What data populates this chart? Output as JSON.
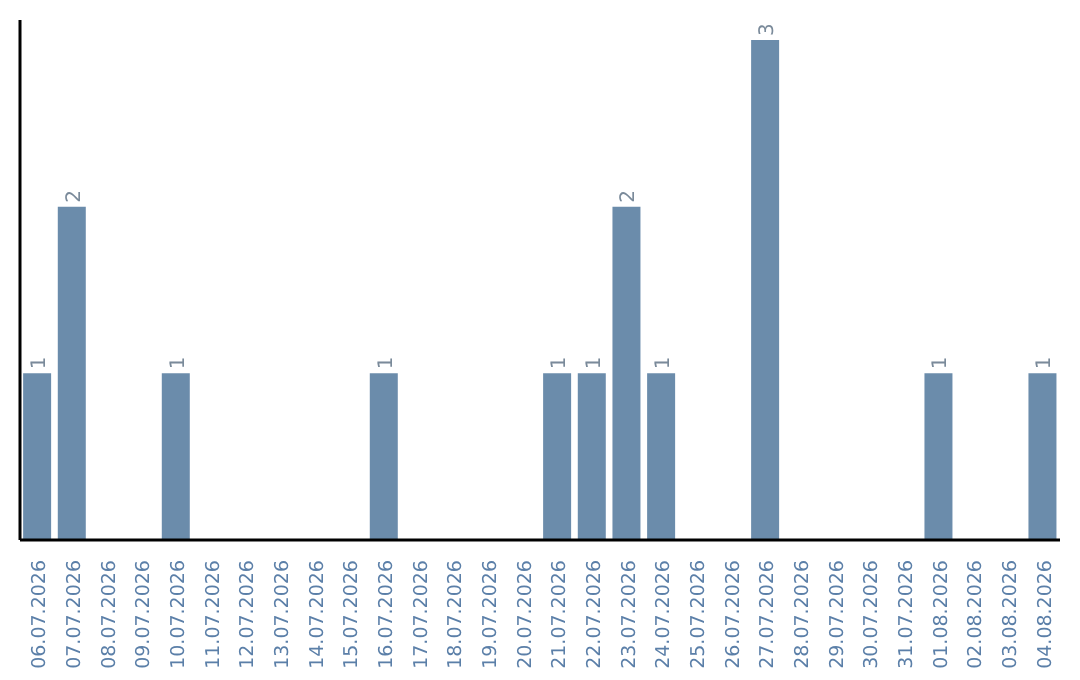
{
  "chart_data": {
    "type": "bar",
    "categories": [
      "06.07.2026",
      "07.07.2026",
      "08.07.2026",
      "09.07.2026",
      "10.07.2026",
      "11.07.2026",
      "12.07.2026",
      "13.07.2026",
      "14.07.2026",
      "15.07.2026",
      "16.07.2026",
      "17.07.2026",
      "18.07.2026",
      "19.07.2026",
      "20.07.2026",
      "21.07.2026",
      "22.07.2026",
      "23.07.2026",
      "24.07.2026",
      "25.07.2026",
      "26.07.2026",
      "27.07.2026",
      "28.07.2026",
      "29.07.2026",
      "30.07.2026",
      "31.07.2026",
      "01.08.2026",
      "02.08.2026",
      "03.08.2026",
      "04.08.2026"
    ],
    "values": [
      1,
      2,
      0,
      0,
      1,
      0,
      0,
      0,
      0,
      0,
      1,
      0,
      0,
      0,
      0,
      1,
      1,
      2,
      1,
      0,
      0,
      3,
      0,
      0,
      0,
      0,
      1,
      0,
      0,
      1
    ],
    "value_labels": [
      "1",
      "2",
      null,
      null,
      "1",
      null,
      null,
      null,
      null,
      null,
      "1",
      null,
      null,
      null,
      null,
      "1",
      "1",
      "2",
      "1",
      null,
      null,
      "3",
      null,
      null,
      null,
      null,
      "1",
      null,
      null,
      "1"
    ],
    "color": "#6b8cab",
    "grid": false,
    "legend": false
  }
}
